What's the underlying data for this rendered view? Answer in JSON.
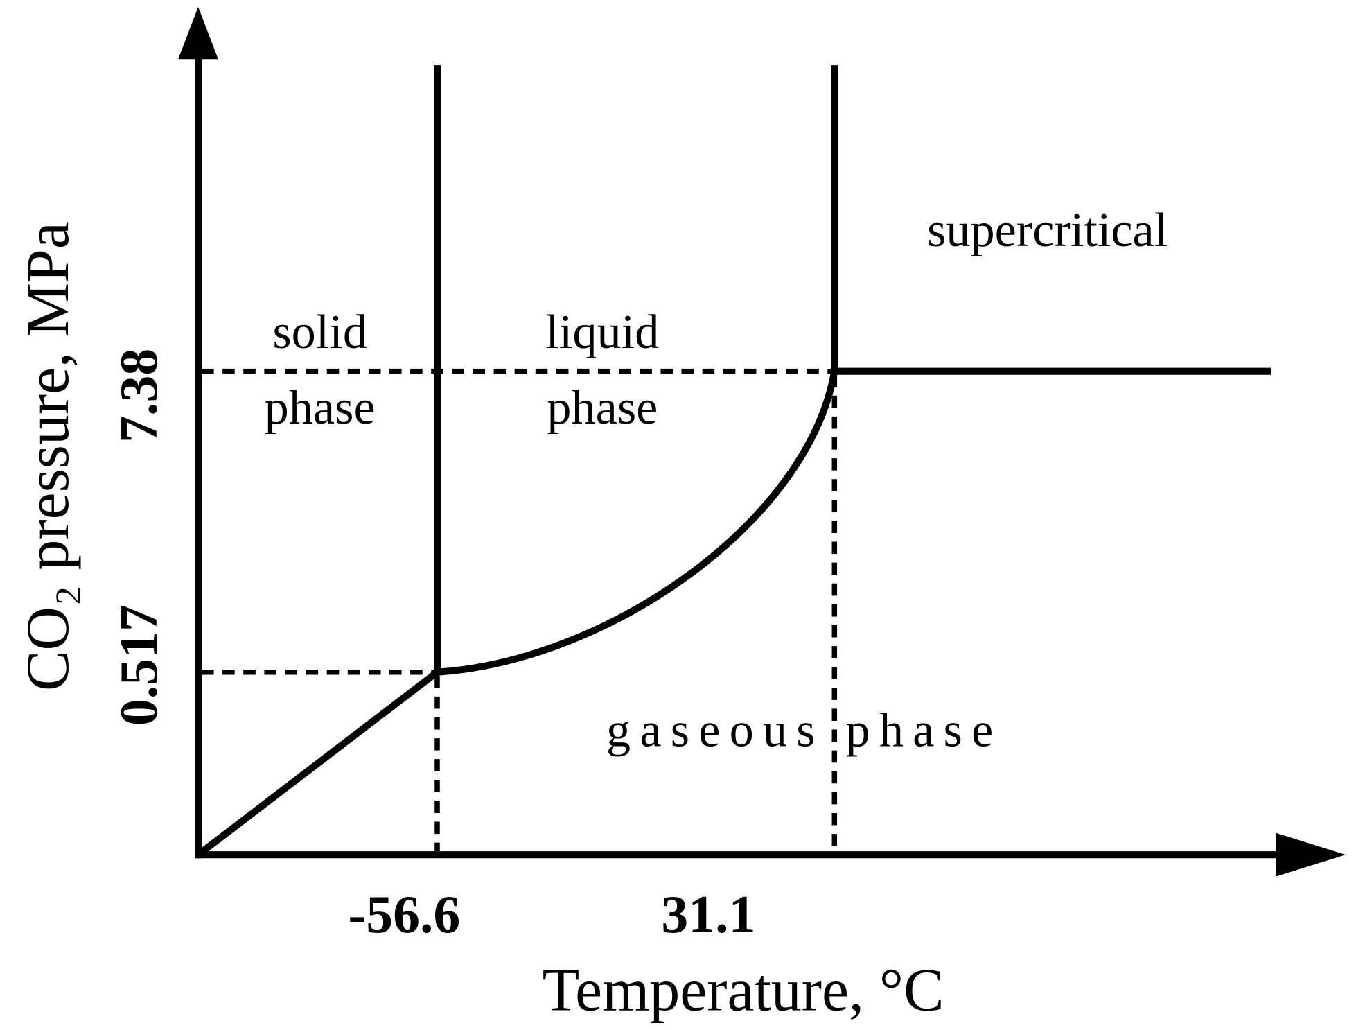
{
  "axes": {
    "x_label": "Temperature, °C",
    "y_label": "CO₂ pressure, MPa",
    "x_ticks": [
      "-56.6",
      "31.1"
    ],
    "y_ticks": [
      "0.517",
      "7.38"
    ]
  },
  "regions": {
    "solid": [
      "solid",
      "phase"
    ],
    "liquid": [
      "liquid",
      "phase"
    ],
    "supercritical": "supercritical",
    "gas": "gaseous phase"
  }
}
